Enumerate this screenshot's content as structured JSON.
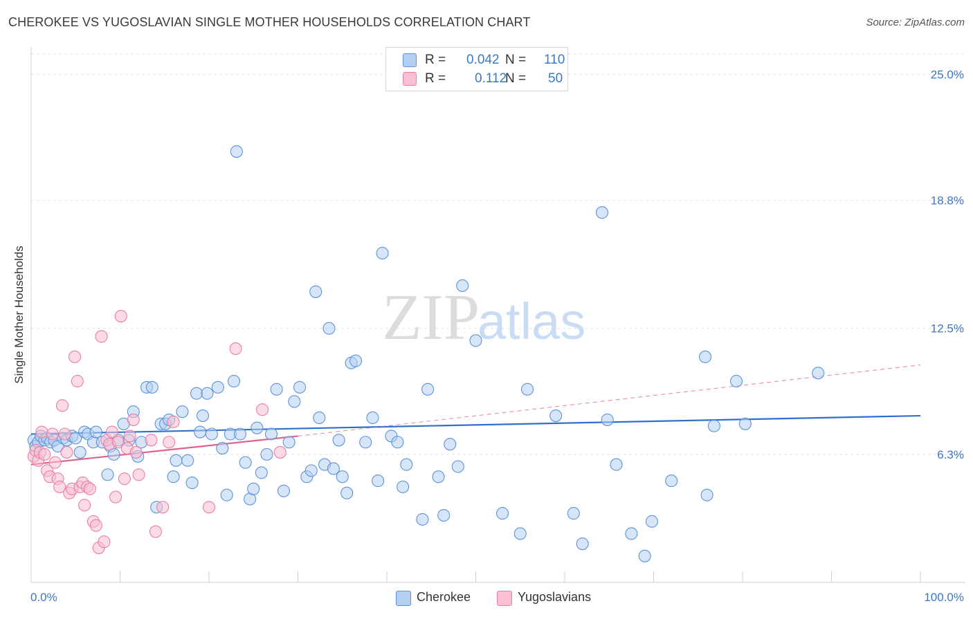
{
  "header": {
    "title": "CHEROKEE VS YUGOSLAVIAN SINGLE MOTHER HOUSEHOLDS CORRELATION CHART",
    "source": "Source: ZipAtlas.com"
  },
  "watermark": {
    "zip": "ZIP",
    "atlas": "atlas"
  },
  "legend_top": {
    "rows": [
      {
        "r_label": "R =",
        "r_value": "0.042",
        "n_label": "N =",
        "n_value": "110",
        "color": "#b5cff2"
      },
      {
        "r_label": "R =",
        "r_value": "0.112",
        "n_label": "N =",
        "n_value": "50",
        "color": "#f8c0d2"
      }
    ]
  },
  "legend_bottom": {
    "items": [
      {
        "label": "Cherokee",
        "color": "#b5cff2"
      },
      {
        "label": "Yugoslavians",
        "color": "#f8c0d2"
      }
    ]
  },
  "chart_data": {
    "type": "scatter",
    "title": "CHEROKEE VS YUGOSLAVIAN SINGLE MOTHER HOUSEHOLDS CORRELATION CHART",
    "xlabel": "",
    "ylabel": "Single Mother Households",
    "xlim": [
      0,
      100
    ],
    "ylim": [
      0,
      26
    ],
    "x_tick_labels": [
      "0.0%",
      "100.0%"
    ],
    "y_ticks": [
      6.3,
      12.5,
      18.8,
      25.0
    ],
    "y_tick_labels": [
      "6.3%",
      "12.5%",
      "18.8%",
      "25.0%"
    ],
    "grid": true,
    "legend_position": "top-center",
    "colors": {
      "cherokee_fill": "#b5cff2",
      "cherokee_stroke": "#5b93d8",
      "cherokee_line": "#2f6fcd",
      "yugo_fill": "#f8c0d2",
      "yugo_stroke": "#e87fa2",
      "yugo_line": "#e0628f"
    },
    "series": [
      {
        "name": "Cherokee",
        "points": [
          [
            0.3,
            7.0
          ],
          [
            0.5,
            6.7
          ],
          [
            0.8,
            6.9
          ],
          [
            1.1,
            7.2
          ],
          [
            1.5,
            7.0
          ],
          [
            1.8,
            7.1
          ],
          [
            2.2,
            6.9
          ],
          [
            2.6,
            7.0
          ],
          [
            3.0,
            6.7
          ],
          [
            3.6,
            7.1
          ],
          [
            4.0,
            7.0
          ],
          [
            4.6,
            7.2
          ],
          [
            5.0,
            7.1
          ],
          [
            5.5,
            6.4
          ],
          [
            6.0,
            7.4
          ],
          [
            6.4,
            7.3
          ],
          [
            7.0,
            6.9
          ],
          [
            7.3,
            7.4
          ],
          [
            8.0,
            6.9
          ],
          [
            8.6,
            5.3
          ],
          [
            8.9,
            6.7
          ],
          [
            9.3,
            6.3
          ],
          [
            9.8,
            7.0
          ],
          [
            10.4,
            7.8
          ],
          [
            11.0,
            7.0
          ],
          [
            11.5,
            8.4
          ],
          [
            12.0,
            6.2
          ],
          [
            12.4,
            6.9
          ],
          [
            13.0,
            9.6
          ],
          [
            13.6,
            9.6
          ],
          [
            14.1,
            3.7
          ],
          [
            14.6,
            7.8
          ],
          [
            15.1,
            7.8
          ],
          [
            15.5,
            8.0
          ],
          [
            16.0,
            5.2
          ],
          [
            16.3,
            6.0
          ],
          [
            17.0,
            8.4
          ],
          [
            17.6,
            6.0
          ],
          [
            18.1,
            4.9
          ],
          [
            18.6,
            9.3
          ],
          [
            19.0,
            7.4
          ],
          [
            19.3,
            8.2
          ],
          [
            19.8,
            9.3
          ],
          [
            20.3,
            7.3
          ],
          [
            21.0,
            9.6
          ],
          [
            21.5,
            6.6
          ],
          [
            22.0,
            4.3
          ],
          [
            22.4,
            7.3
          ],
          [
            22.8,
            9.9
          ],
          [
            23.1,
            21.2
          ],
          [
            23.5,
            7.3
          ],
          [
            24.1,
            5.9
          ],
          [
            24.6,
            4.1
          ],
          [
            25.0,
            4.6
          ],
          [
            25.4,
            7.6
          ],
          [
            25.9,
            5.4
          ],
          [
            26.5,
            6.3
          ],
          [
            27.0,
            7.3
          ],
          [
            27.6,
            9.5
          ],
          [
            28.4,
            4.5
          ],
          [
            29.0,
            6.9
          ],
          [
            29.6,
            8.9
          ],
          [
            30.2,
            9.6
          ],
          [
            31.0,
            5.2
          ],
          [
            31.5,
            5.5
          ],
          [
            32.0,
            14.3
          ],
          [
            32.4,
            8.1
          ],
          [
            33.0,
            5.8
          ],
          [
            33.5,
            12.5
          ],
          [
            34.0,
            5.6
          ],
          [
            34.6,
            7.0
          ],
          [
            35.0,
            5.2
          ],
          [
            35.5,
            4.4
          ],
          [
            36.0,
            10.8
          ],
          [
            36.5,
            10.9
          ],
          [
            37.6,
            6.9
          ],
          [
            38.4,
            8.1
          ],
          [
            39.0,
            5.0
          ],
          [
            39.5,
            16.2
          ],
          [
            40.5,
            7.2
          ],
          [
            41.2,
            6.9
          ],
          [
            41.8,
            4.7
          ],
          [
            42.2,
            5.8
          ],
          [
            44.0,
            3.1
          ],
          [
            44.6,
            9.5
          ],
          [
            45.8,
            5.2
          ],
          [
            46.4,
            3.3
          ],
          [
            47.1,
            6.8
          ],
          [
            48.0,
            5.7
          ],
          [
            48.5,
            14.6
          ],
          [
            50.0,
            11.9
          ],
          [
            53.0,
            3.4
          ],
          [
            55.0,
            2.4
          ],
          [
            55.8,
            9.5
          ],
          [
            59.0,
            8.2
          ],
          [
            61.0,
            3.4
          ],
          [
            62.0,
            1.9
          ],
          [
            64.2,
            18.2
          ],
          [
            64.8,
            8.0
          ],
          [
            65.8,
            5.8
          ],
          [
            67.5,
            2.4
          ],
          [
            69.0,
            1.3
          ],
          [
            69.8,
            3.0
          ],
          [
            75.8,
            11.1
          ],
          [
            76.0,
            4.3
          ],
          [
            76.8,
            7.7
          ],
          [
            79.3,
            9.9
          ],
          [
            80.3,
            7.8
          ],
          [
            88.5,
            10.3
          ],
          [
            72.0,
            5.0
          ]
        ]
      },
      {
        "name": "Yugoslavians",
        "points": [
          [
            0.3,
            6.2
          ],
          [
            0.5,
            6.5
          ],
          [
            0.8,
            6.0
          ],
          [
            1.0,
            6.4
          ],
          [
            1.2,
            7.4
          ],
          [
            1.5,
            6.3
          ],
          [
            1.8,
            5.5
          ],
          [
            2.1,
            5.2
          ],
          [
            2.4,
            7.3
          ],
          [
            2.7,
            5.9
          ],
          [
            3.0,
            5.1
          ],
          [
            3.2,
            4.7
          ],
          [
            3.5,
            8.7
          ],
          [
            3.8,
            7.3
          ],
          [
            4.0,
            6.4
          ],
          [
            4.3,
            4.4
          ],
          [
            4.6,
            4.6
          ],
          [
            4.9,
            11.1
          ],
          [
            5.2,
            9.9
          ],
          [
            5.5,
            4.7
          ],
          [
            5.8,
            4.9
          ],
          [
            6.0,
            3.8
          ],
          [
            6.3,
            4.7
          ],
          [
            6.6,
            4.6
          ],
          [
            7.0,
            3.0
          ],
          [
            7.3,
            2.8
          ],
          [
            7.6,
            1.7
          ],
          [
            7.9,
            12.1
          ],
          [
            8.2,
            2.0
          ],
          [
            8.5,
            7.0
          ],
          [
            8.8,
            6.8
          ],
          [
            9.1,
            7.4
          ],
          [
            9.5,
            4.2
          ],
          [
            9.8,
            6.9
          ],
          [
            10.1,
            13.1
          ],
          [
            10.5,
            5.1
          ],
          [
            10.8,
            6.6
          ],
          [
            11.1,
            7.2
          ],
          [
            11.5,
            8.0
          ],
          [
            11.8,
            6.4
          ],
          [
            12.1,
            5.3
          ],
          [
            13.5,
            7.0
          ],
          [
            14.0,
            2.5
          ],
          [
            14.8,
            3.7
          ],
          [
            15.5,
            6.9
          ],
          [
            16.0,
            7.9
          ],
          [
            20.0,
            3.7
          ],
          [
            23.0,
            11.5
          ],
          [
            26.0,
            8.5
          ],
          [
            28.0,
            6.4
          ]
        ]
      }
    ],
    "trendlines": [
      {
        "name": "Cherokee",
        "from": [
          0,
          7.3
        ],
        "to": [
          100,
          8.2
        ]
      },
      {
        "name": "Yugoslavians",
        "from": [
          0,
          5.8
        ],
        "to": [
          30,
          7.2
        ],
        "dashed_extension_to": [
          100,
          10.7
        ]
      }
    ]
  }
}
